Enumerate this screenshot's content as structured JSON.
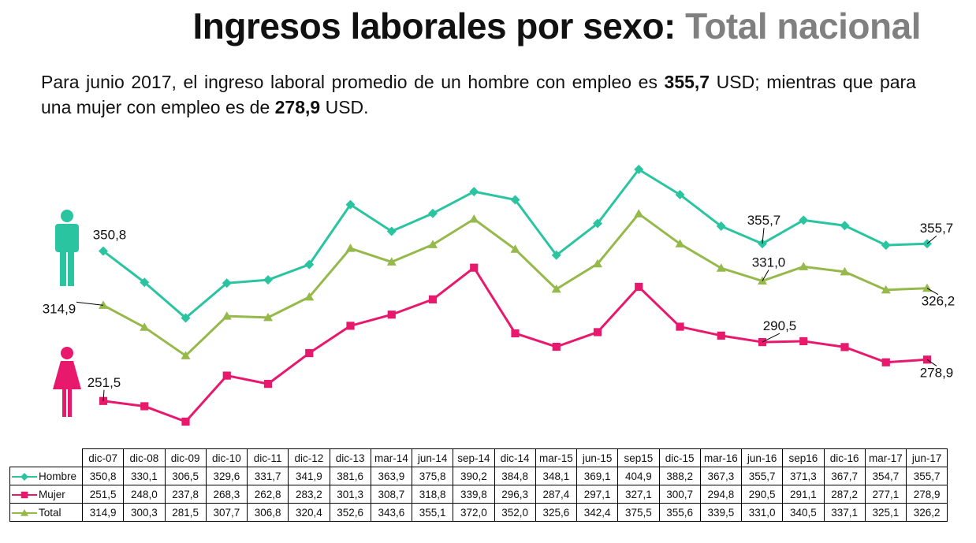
{
  "title": {
    "main": "Ingresos laborales por sexo: ",
    "highlight": "Total nacional"
  },
  "subtitle": {
    "p1": "Para junio 2017, el ingreso laboral promedio de un hombre con empleo es ",
    "v1": "355,7",
    "p2": " USD; mientras que para una mujer con empleo es de ",
    "v2": "278,9",
    "p3": " USD."
  },
  "colors": {
    "hombre": "#2bc4a1",
    "mujer": "#e8186d",
    "total": "#96b94b"
  },
  "icons": {
    "hombre": "man-icon",
    "mujer": "woman-icon"
  },
  "chart_data": {
    "type": "line",
    "categories": [
      "dic-07",
      "dic-08",
      "dic-09",
      "dic-10",
      "dic-11",
      "dic-12",
      "dic-13",
      "mar-14",
      "jun-14",
      "sep-14",
      "dic-14",
      "mar-15",
      "jun-15",
      "sep15",
      "dic-15",
      "mar-16",
      "jun-16",
      "sep16",
      "dic-16",
      "mar-17",
      "jun-17"
    ],
    "series": [
      {
        "name": "Hombre",
        "marker": "diamond",
        "color": "#2bc4a1",
        "values": [
          350.8,
          330.1,
          306.5,
          329.6,
          331.7,
          341.9,
          381.6,
          363.9,
          375.8,
          390.2,
          384.8,
          348.1,
          369.1,
          404.9,
          388.2,
          367.3,
          355.7,
          371.3,
          367.7,
          354.7,
          355.7
        ],
        "labels": [
          "350,8",
          "330,1",
          "306,5",
          "329,6",
          "331,7",
          "341,9",
          "381,6",
          "363,9",
          "375,8",
          "390,2",
          "384,8",
          "348,1",
          "369,1",
          "404,9",
          "388,2",
          "367,3",
          "355,7",
          "371,3",
          "367,7",
          "354,7",
          "355,7"
        ]
      },
      {
        "name": "Mujer",
        "marker": "square",
        "color": "#e8186d",
        "values": [
          251.5,
          248.0,
          237.8,
          268.3,
          262.8,
          283.2,
          301.3,
          308.7,
          318.8,
          339.8,
          296.3,
          287.4,
          297.1,
          327.1,
          300.7,
          294.8,
          290.5,
          291.1,
          287.2,
          277.1,
          278.9
        ],
        "labels": [
          "251,5",
          "248,0",
          "237,8",
          "268,3",
          "262,8",
          "283,2",
          "301,3",
          "308,7",
          "318,8",
          "339,8",
          "296,3",
          "287,4",
          "297,1",
          "327,1",
          "300,7",
          "294,8",
          "290,5",
          "291,1",
          "287,2",
          "277,1",
          "278,9"
        ]
      },
      {
        "name": "Total",
        "marker": "triangle",
        "color": "#96b94b",
        "values": [
          314.9,
          300.3,
          281.5,
          307.7,
          306.8,
          320.4,
          352.6,
          343.6,
          355.1,
          372.0,
          352.0,
          325.6,
          342.4,
          375.5,
          355.6,
          339.5,
          331.0,
          340.5,
          337.1,
          325.1,
          326.2
        ],
        "labels": [
          "314,9",
          "300,3",
          "281,5",
          "307,7",
          "306,8",
          "320,4",
          "352,6",
          "343,6",
          "355,1",
          "372,0",
          "352,0",
          "325,6",
          "342,4",
          "375,5",
          "355,6",
          "339,5",
          "331,0",
          "340,5",
          "337,1",
          "325,1",
          "326,2"
        ]
      }
    ],
    "annotations": [
      {
        "series": "Hombre",
        "index": 0,
        "text": "350,8"
      },
      {
        "series": "Hombre",
        "index": 16,
        "text": "355,7"
      },
      {
        "series": "Hombre",
        "index": 20,
        "text": "355,7"
      },
      {
        "series": "Total",
        "index": 0,
        "text": "314,9"
      },
      {
        "series": "Total",
        "index": 16,
        "text": "331,0"
      },
      {
        "series": "Total",
        "index": 20,
        "text": "326,2"
      },
      {
        "series": "Mujer",
        "index": 0,
        "text": "251,5"
      },
      {
        "series": "Mujer",
        "index": 16,
        "text": "290,5"
      },
      {
        "series": "Mujer",
        "index": 20,
        "text": "278,9"
      }
    ],
    "ylim": [
      230,
      410
    ],
    "grid": false,
    "legend": "data-table below chart"
  }
}
